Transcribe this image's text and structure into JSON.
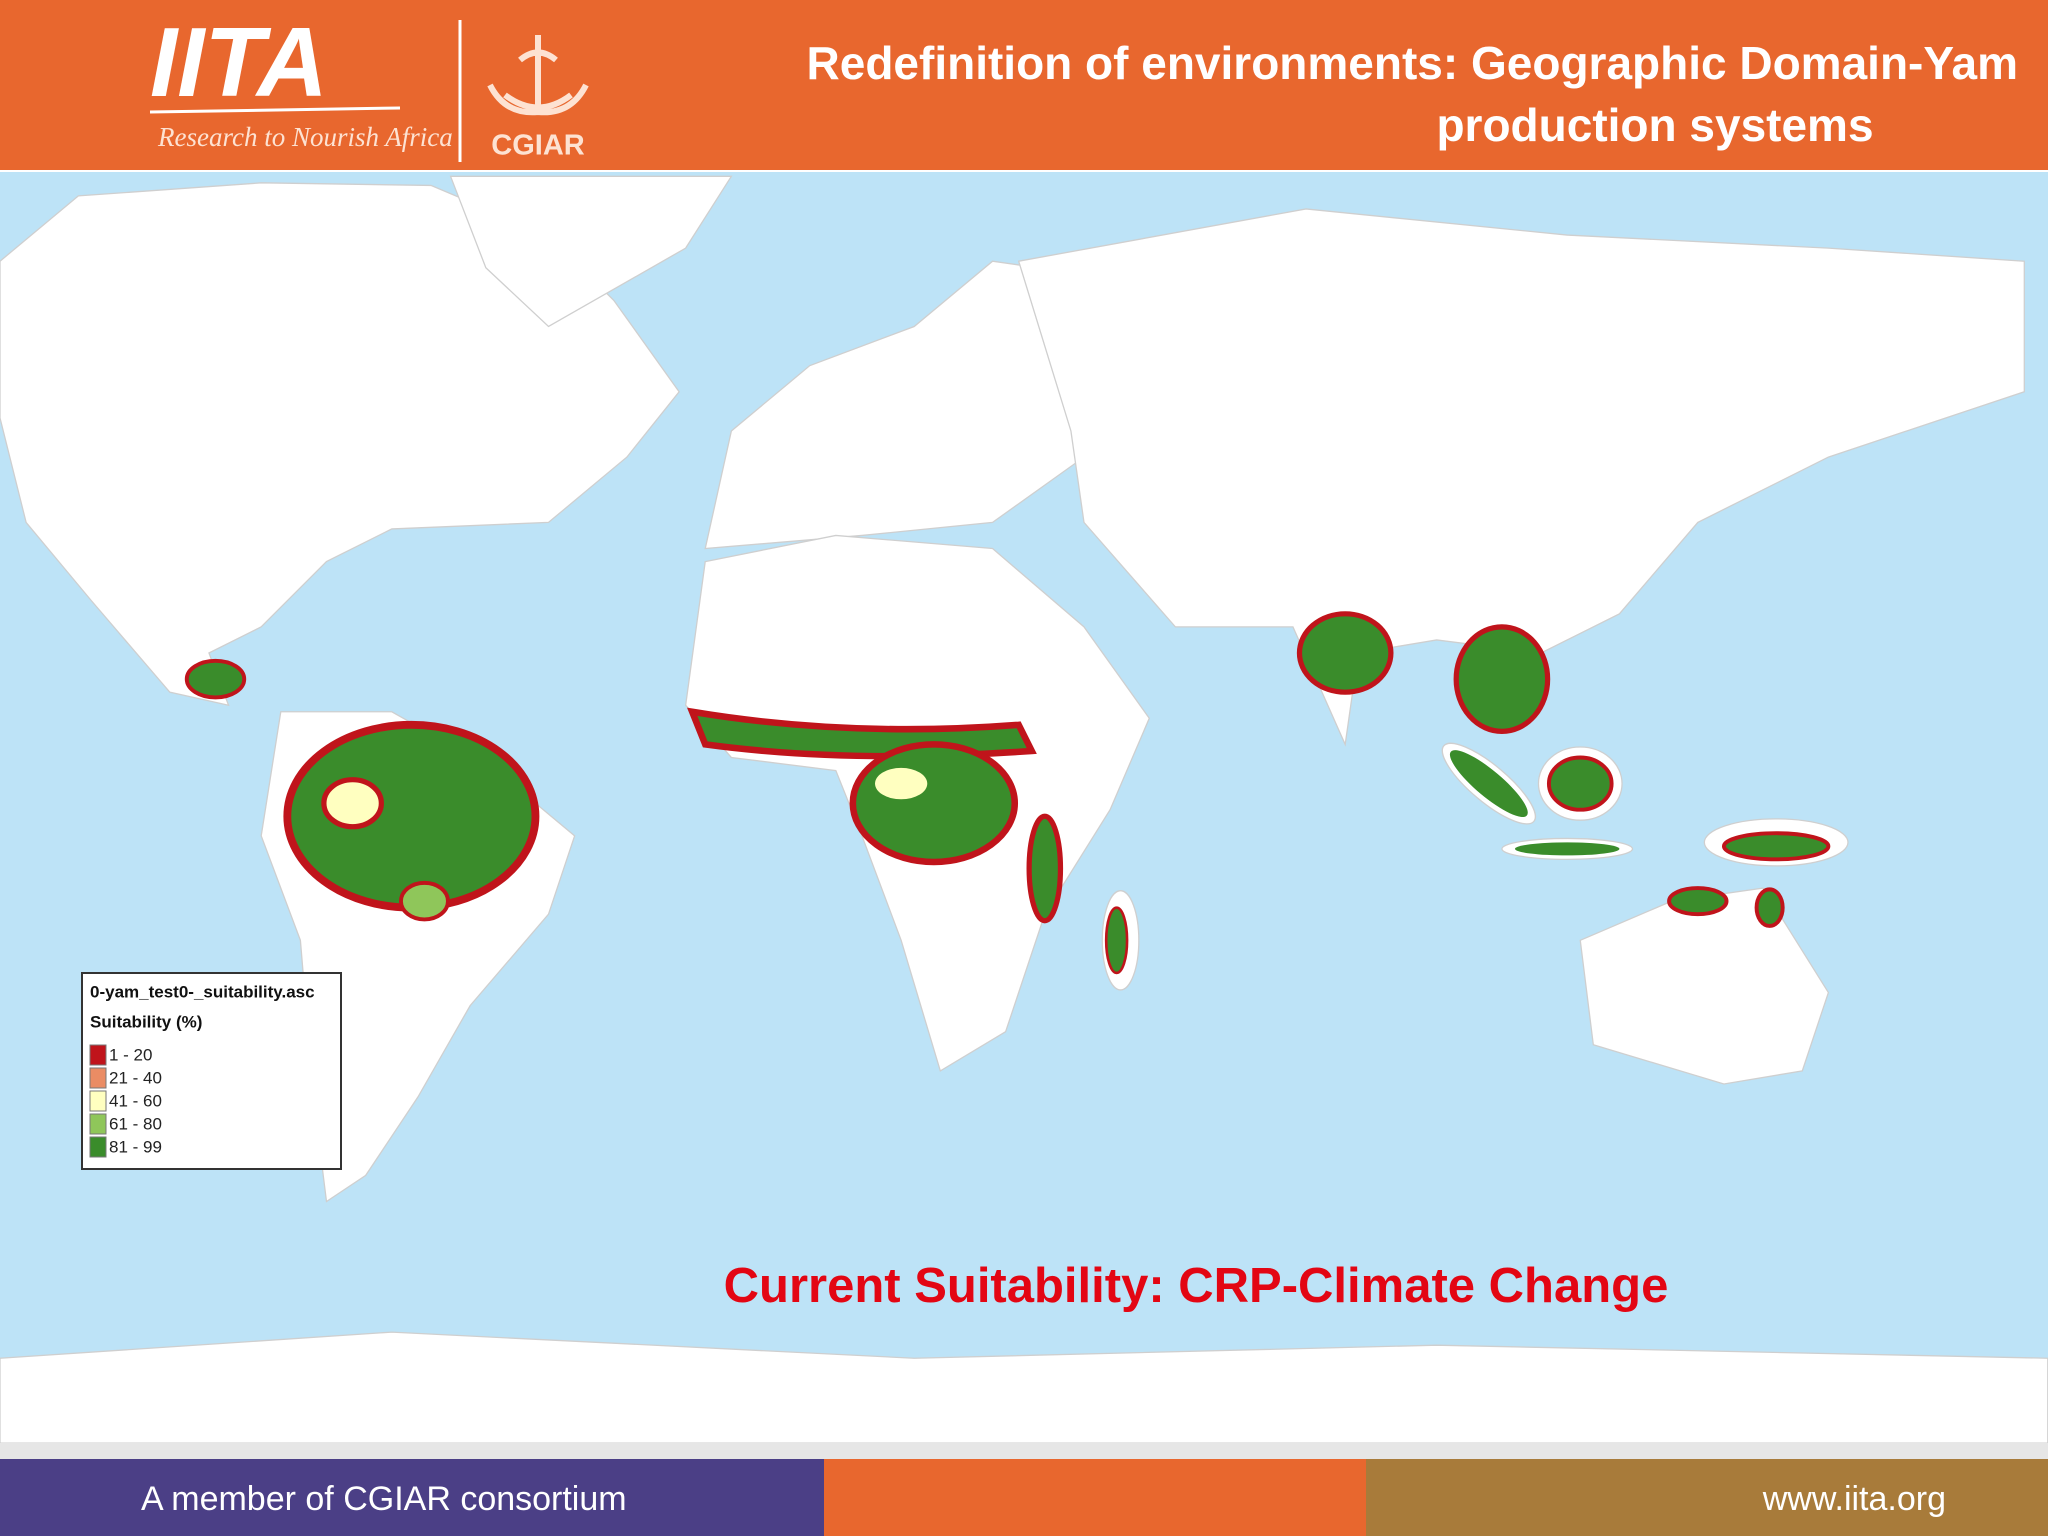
{
  "header": {
    "logo_text": "IITA",
    "tagline": "Research to Nourish Africa",
    "partner": "CGIAR",
    "title_lines": [
      "Redefinition of environments: Geographic Domain-Yam",
      "production systems"
    ]
  },
  "map": {
    "legend": {
      "file": "0-yam_test0-_suitability.asc",
      "title": "Suitability (%)",
      "classes": [
        {
          "label": "1 - 20",
          "color": "#c0141b"
        },
        {
          "label": "21 - 40",
          "color": "#ea8c64"
        },
        {
          "label": "41 - 60",
          "color": "#ffffc0"
        },
        {
          "label": "61 - 80",
          "color": "#8fc65a"
        },
        {
          "label": "81 - 99",
          "color": "#3a8c2b"
        }
      ]
    },
    "caption": "Current Suitability: CRP-Climate Change"
  },
  "footer": {
    "left": "A member of CGIAR consortium",
    "right": "www.iita.org"
  }
}
